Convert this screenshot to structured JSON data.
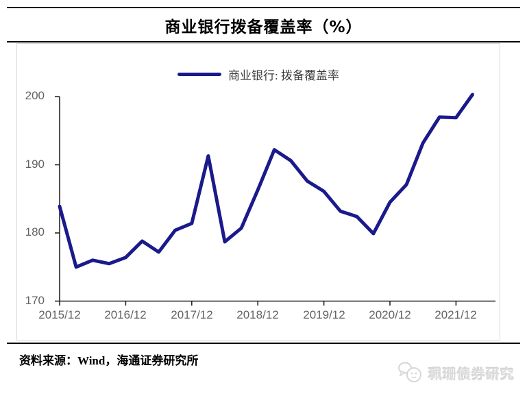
{
  "header": {
    "title": "商业银行拨备覆盖率（%）"
  },
  "chart_data": {
    "type": "line",
    "title": "商业银行拨备覆盖率（%）",
    "legend_label": "商业银行: 拨备覆盖率",
    "legend_position": "top-center",
    "grid": false,
    "x": [
      "2015/12",
      "2016/03",
      "2016/06",
      "2016/09",
      "2016/12",
      "2017/03",
      "2017/06",
      "2017/09",
      "2017/12",
      "2018/03",
      "2018/06",
      "2018/09",
      "2018/12",
      "2019/03",
      "2019/06",
      "2019/09",
      "2019/12",
      "2020/03",
      "2020/06",
      "2020/09",
      "2020/12",
      "2021/03",
      "2021/06",
      "2021/09",
      "2021/12",
      "2022/03"
    ],
    "series": [
      {
        "name": "商业银行: 拨备覆盖率",
        "values": [
          183.9,
          175.0,
          176.0,
          175.5,
          176.4,
          178.8,
          177.2,
          180.4,
          181.4,
          191.3,
          178.7,
          180.7,
          186.3,
          192.2,
          190.6,
          187.6,
          186.1,
          183.2,
          182.4,
          179.9,
          184.5,
          187.1,
          193.2,
          197.0,
          196.9,
          200.3
        ]
      }
    ],
    "ylim": [
      170,
      200
    ],
    "y_ticks": [
      200,
      190,
      180,
      170
    ],
    "y_tick_labels": [
      "200",
      "190",
      "180",
      "170"
    ],
    "x_tick_labels": [
      "2015/12",
      "2016/12",
      "2017/12",
      "2018/12",
      "2019/12",
      "2020/12",
      "2021/12"
    ],
    "line_color": "#1a1a8c",
    "axis_color": "#262626",
    "tick_label_color": "#636363"
  },
  "footer": {
    "source": "资料来源：Wind，海通证券研究所",
    "watermark": "珮珊债券研究"
  }
}
